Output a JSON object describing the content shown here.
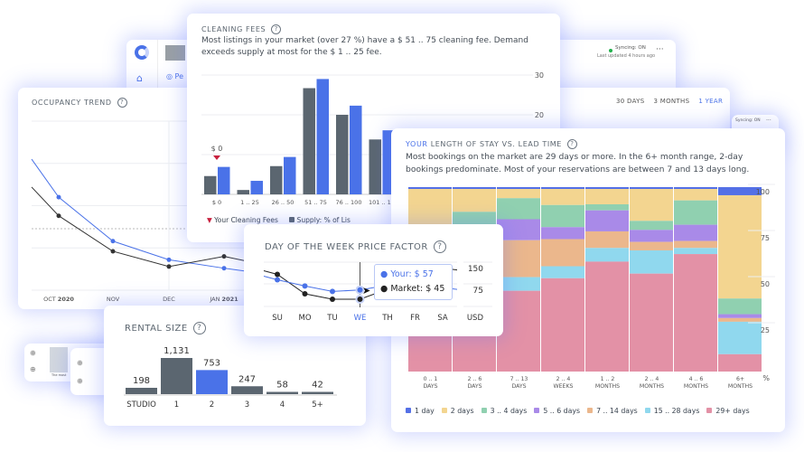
{
  "background": {
    "sync_status": "Syncing: ON",
    "last_updated": "Last updated 4 hours ago",
    "more_label": "···",
    "tab_partial": "Pe",
    "small_sync": "Syncing: ON",
    "small_more": "···",
    "range_tabs": [
      {
        "label": "30 DAYS",
        "active": false
      },
      {
        "label": "3 MONTHS",
        "active": false
      },
      {
        "label": "1 YEAR",
        "active": true
      }
    ],
    "bottom_thumb_caption": "The most"
  },
  "colors": {
    "accent": "#4a72e8",
    "market": "#5b6670",
    "sync_dot": "#22b14c",
    "your_fee_marker": "#c8213e"
  },
  "occupancy": {
    "title": "OCCUPANCY TREND",
    "help": "?",
    "chart_data": {
      "type": "line",
      "x_labels": [
        {
          "month": "OCT",
          "year": "2020"
        },
        {
          "month": "NOV",
          "year": ""
        },
        {
          "month": "DEC",
          "year": ""
        },
        {
          "month": "JAN",
          "year": "2021"
        }
      ],
      "series": [
        {
          "color": "#4a72e8",
          "values": [
            77.5,
            55,
            29,
            18,
            13,
            11
          ]
        },
        {
          "color": "#333333",
          "values": [
            61,
            44,
            23,
            14,
            20,
            17
          ]
        }
      ],
      "ylim": [
        0,
        100
      ],
      "grid": true
    }
  },
  "cleaning": {
    "title": "CLEANING FEES",
    "help": "?",
    "description": "Most listings in your market (over 27 %) have a $ 51 .. 75 cleaning fee. Demand exceeds supply at most for the $ 1 .. 25 fee.",
    "your_fee_label": "$ 0",
    "legend": {
      "your": "Your Cleaning Fees",
      "supply": "Supply: % of Lis"
    },
    "chart_data": {
      "type": "bar",
      "categories": [
        "$ 0",
        "1 .. 25",
        "26 .. 50",
        "51 .. 75",
        "76 .. 100",
        "101 .. 12"
      ],
      "series": [
        {
          "color": "#5b6670",
          "values": [
            4.6,
            1.1,
            7.1,
            26.7,
            20,
            13.8
          ]
        },
        {
          "name": "Supply: % of Lis",
          "color": "#4a72e8",
          "values": [
            6.9,
            3.4,
            9.4,
            29,
            22.3,
            16.1
          ]
        }
      ],
      "y_ticks": [
        "30",
        "20"
      ],
      "ylim": [
        0,
        30
      ],
      "grid": true
    }
  },
  "los": {
    "title_highlight": "YOUR",
    "title": " LENGTH OF STAY VS. LEAD TIME",
    "help": "?",
    "description": "Most bookings on the market are 29 days or more. In the 6+ month range, 2-day bookings predominate. Most of your reservations are between 7 and 13 days long.",
    "chart_data": {
      "type": "bar",
      "stacked": true,
      "categories": [
        [
          "0 .. 1",
          "DAYS"
        ],
        [
          "2 .. 6",
          "DAYS"
        ],
        [
          "7 .. 13",
          "DAYS"
        ],
        [
          "2 .. 4",
          "WEEKS"
        ],
        [
          "1 .. 2",
          "MONTHS"
        ],
        [
          "2 .. 4",
          "MONTHS"
        ],
        [
          "4 .. 6",
          "MONTHS"
        ],
        [
          "6+",
          "MONTHS"
        ]
      ],
      "series": [
        {
          "name": "1 day",
          "color": "#5470e6",
          "values": [
            1,
            1,
            1,
            1,
            1,
            1,
            1,
            4.4
          ]
        },
        {
          "name": "2 days",
          "color": "#f3d590",
          "values": [
            20,
            12.4,
            5,
            8.7,
            8.3,
            17.3,
            6.2,
            56
          ]
        },
        {
          "name": "3 .. 4 days",
          "color": "#90d0b0",
          "values": [
            8,
            8,
            11.4,
            12,
            3.3,
            4.9,
            13.2,
            8.5
          ]
        },
        {
          "name": "5 .. 6 days",
          "color": "#a98ae8",
          "values": [
            6,
            6,
            11.4,
            6.5,
            11.4,
            6.5,
            8.8,
            2.1
          ]
        },
        {
          "name": "7 .. 14 days",
          "color": "#ebb78c",
          "values": [
            12,
            20,
            20,
            14.7,
            9,
            4.6,
            3.8,
            2
          ]
        },
        {
          "name": "15 .. 28 days",
          "color": "#90d8ee",
          "values": [
            8,
            10,
            7.4,
            6.5,
            7.4,
            12.6,
            3.3,
            17.6
          ]
        },
        {
          "name": "29+ days",
          "color": "#e391a6",
          "values": [
            45,
            42.6,
            43.8,
            50.6,
            59.6,
            53.1,
            63.7,
            9.4
          ]
        }
      ],
      "y_ticks": [
        "100",
        "75",
        "50",
        "25"
      ],
      "y_unit": "%",
      "ylim": [
        0,
        100
      ]
    }
  },
  "dow": {
    "title": "DAY OF THE WEEK PRICE FACTOR",
    "help": "?",
    "chart_data": {
      "type": "line",
      "categories": [
        "SU",
        "MO",
        "TU",
        "WE",
        "TH",
        "FR",
        "SA"
      ],
      "active_index": 3,
      "series": [
        {
          "name": "Your",
          "color": "#4a72e8",
          "values": [
            70,
            62,
            55,
            57,
            63,
            63,
            60
          ]
        },
        {
          "name": "Market",
          "color": "#222222",
          "values": [
            77,
            52,
            45,
            45,
            58,
            78,
            85
          ]
        }
      ],
      "y_ticks": [
        "150",
        "75"
      ],
      "y_unit": "USD"
    },
    "tooltip": {
      "your": "Your: $ 57",
      "market": "Market: $ 45"
    }
  },
  "rental": {
    "title": "RENTAL SIZE",
    "help": "?",
    "chart_data": {
      "type": "bar",
      "categories": [
        "STUDIO",
        "1",
        "2",
        "3",
        "4",
        "5+"
      ],
      "values": [
        198,
        1131,
        753,
        247,
        58,
        42
      ],
      "labels": [
        "198",
        "1,131",
        "753",
        "247",
        "58",
        "42"
      ],
      "highlight_index": 2
    }
  }
}
